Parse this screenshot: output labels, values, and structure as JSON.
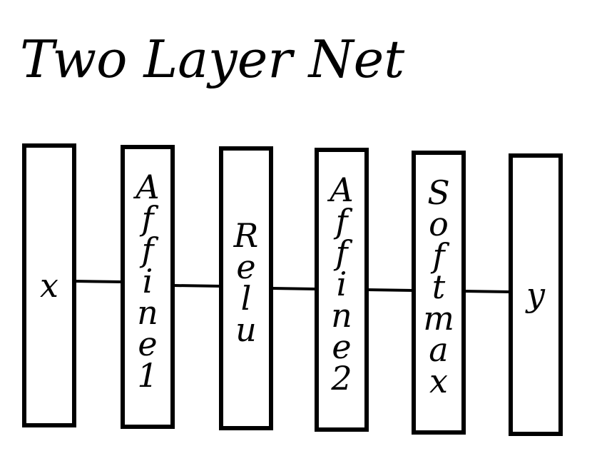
{
  "title": "Two Layer Net",
  "layers": [
    {
      "label": "x"
    },
    {
      "label": "Affine1"
    },
    {
      "label": "Relu"
    },
    {
      "label": "Affine2"
    },
    {
      "label": "Softmax"
    },
    {
      "label": "y"
    }
  ]
}
